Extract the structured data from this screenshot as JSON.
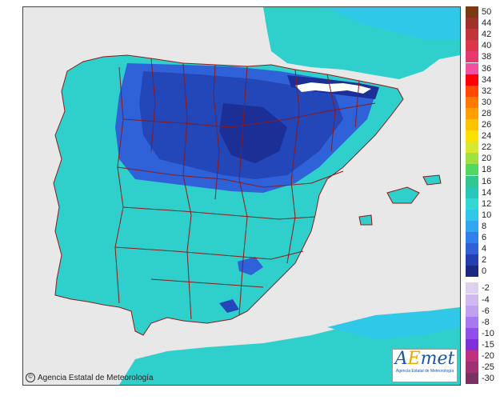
{
  "map": {
    "copyright": "Agencia Estatal de Meteorología",
    "logo_text": "AEmet",
    "logo_subtitle": "Agencia Estatal de Meteorología",
    "colors": {
      "sea": "#e8e8e8",
      "land_base": "#2fd0cc",
      "cold": "#2f62d8",
      "colder": "#2346b8",
      "coldest": "#1b2f96",
      "snow": "#ffffff",
      "border": "#8b1a1a"
    },
    "legend_positive": [
      {
        "label": "50",
        "color": "#7b3a12"
      },
      {
        "label": "44",
        "color": "#a0302a"
      },
      {
        "label": "42",
        "color": "#c0353a"
      },
      {
        "label": "40",
        "color": "#d8384a"
      },
      {
        "label": "38",
        "color": "#e83870"
      },
      {
        "label": "36",
        "color": "#f050a0"
      },
      {
        "label": "34",
        "color": "#ff0000"
      },
      {
        "label": "32",
        "color": "#ff4a00"
      },
      {
        "label": "30",
        "color": "#ff7a00"
      },
      {
        "label": "28",
        "color": "#ffa000"
      },
      {
        "label": "26",
        "color": "#ffc400"
      },
      {
        "label": "24",
        "color": "#ffe000"
      },
      {
        "label": "22",
        "color": "#d8e830"
      },
      {
        "label": "20",
        "color": "#a0e040"
      },
      {
        "label": "18",
        "color": "#50d860"
      },
      {
        "label": "16",
        "color": "#30c890"
      },
      {
        "label": "14",
        "color": "#28c8b8"
      },
      {
        "label": "12",
        "color": "#30d8d8"
      },
      {
        "label": "10",
        "color": "#30c8e8"
      },
      {
        "label": "8",
        "color": "#30a8f0"
      },
      {
        "label": "6",
        "color": "#2f80e8"
      },
      {
        "label": "4",
        "color": "#2f60d8"
      },
      {
        "label": "2",
        "color": "#2440b0"
      },
      {
        "label": "0",
        "color": "#1a2a80"
      }
    ],
    "legend_negative": [
      {
        "label": "-2",
        "color": "#e0d0f0"
      },
      {
        "label": "-4",
        "color": "#d0b8f0"
      },
      {
        "label": "-6",
        "color": "#c0a0f0"
      },
      {
        "label": "-8",
        "color": "#a878f0"
      },
      {
        "label": "-10",
        "color": "#9050e8"
      },
      {
        "label": "-15",
        "color": "#8030d8"
      },
      {
        "label": "-20",
        "color": "#c03080"
      },
      {
        "label": "-25",
        "color": "#a03070"
      },
      {
        "label": "-30",
        "color": "#7a3060"
      }
    ]
  }
}
